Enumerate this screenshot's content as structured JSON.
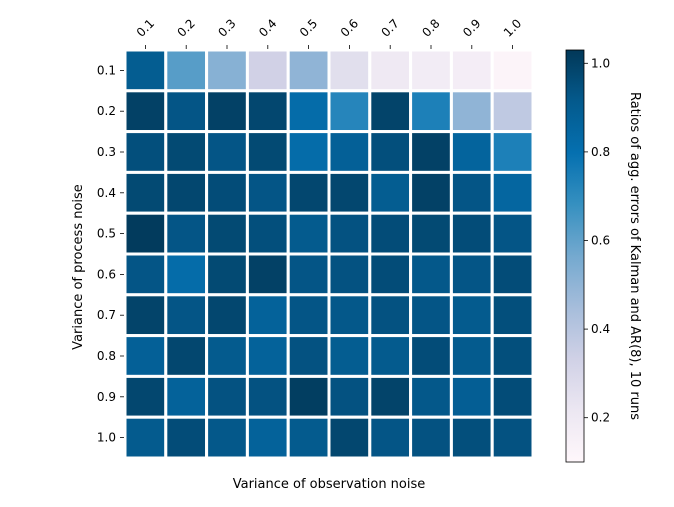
{
  "chart_data": {
    "type": "heatmap",
    "title": "",
    "xlabel": "Variance of observation noise",
    "ylabel": "Variance of process noise",
    "colorbar_label": "Ratios of agg. errors of Kalman and AR(8), 10 runs",
    "x_categories": [
      "0.1",
      "0.2",
      "0.3",
      "0.4",
      "0.5",
      "0.6",
      "0.7",
      "0.8",
      "0.9",
      "1.0"
    ],
    "y_categories": [
      "0.1",
      "0.2",
      "0.3",
      "0.4",
      "0.5",
      "0.6",
      "0.7",
      "0.8",
      "0.9",
      "1.0"
    ],
    "x_axis_position": "top",
    "x_tick_rotation": "-45",
    "colormap": "PuBu",
    "colormap_stops": [
      "#fff7fb",
      "#ece7f2",
      "#d0d1e6",
      "#a6bddb",
      "#74a9cf",
      "#3690c0",
      "#0570b0",
      "#045a8d",
      "#023858"
    ],
    "vmin": 0.1,
    "vmax": 1.03,
    "colorbar_ticks": [
      "0.2",
      "0.4",
      "0.6",
      "0.8",
      "1.0"
    ],
    "colorbar_tick_values": [
      0.2,
      0.4,
      0.6,
      0.8,
      1.0
    ],
    "cell_gap_color": "#ffffff",
    "values": [
      [
        0.9,
        0.62,
        0.52,
        0.33,
        0.5,
        0.26,
        0.2,
        0.18,
        0.17,
        0.12
      ],
      [
        1.0,
        0.93,
        1.0,
        0.98,
        0.82,
        0.72,
        0.99,
        0.74,
        0.5,
        0.38
      ],
      [
        0.95,
        0.97,
        0.93,
        0.97,
        0.82,
        0.88,
        0.95,
        1.0,
        0.86,
        0.74
      ],
      [
        0.97,
        0.98,
        0.96,
        0.93,
        0.98,
        0.98,
        0.9,
        1.0,
        0.93,
        0.85
      ],
      [
        1.02,
        0.93,
        0.97,
        0.95,
        0.91,
        0.94,
        0.96,
        0.97,
        0.96,
        0.93
      ],
      [
        0.93,
        0.82,
        0.97,
        1.0,
        0.93,
        0.94,
        0.96,
        0.92,
        0.93,
        0.96
      ],
      [
        0.99,
        0.93,
        0.98,
        0.87,
        0.93,
        0.92,
        0.94,
        0.93,
        0.91,
        0.95
      ],
      [
        0.88,
        0.98,
        0.91,
        0.87,
        0.94,
        0.9,
        0.91,
        0.96,
        0.91,
        0.95
      ],
      [
        0.98,
        0.87,
        0.94,
        0.94,
        1.01,
        0.94,
        0.99,
        0.92,
        0.89,
        0.96
      ],
      [
        0.91,
        0.96,
        0.92,
        0.87,
        0.91,
        0.98,
        0.93,
        0.94,
        0.95,
        0.94
      ]
    ]
  }
}
